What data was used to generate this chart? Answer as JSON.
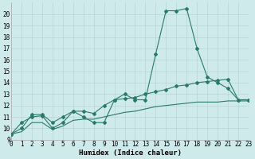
{
  "xlabel": "Humidex (Indice chaleur)",
  "x": [
    0,
    1,
    2,
    3,
    4,
    5,
    6,
    7,
    8,
    9,
    10,
    11,
    12,
    13,
    14,
    15,
    16,
    17,
    18,
    19,
    20,
    21,
    22,
    23
  ],
  "line1": [
    9.5,
    10.5,
    11.0,
    11.1,
    10.0,
    10.5,
    11.5,
    11.0,
    10.5,
    10.5,
    12.5,
    13.0,
    12.5,
    12.5,
    16.5,
    20.3,
    20.3,
    20.5,
    17.0,
    14.5,
    14.0,
    13.5,
    12.5,
    12.5
  ],
  "line2": [
    9.5,
    10.0,
    11.2,
    11.2,
    10.5,
    11.0,
    11.5,
    11.5,
    11.3,
    12.0,
    12.5,
    12.6,
    12.7,
    13.0,
    13.2,
    13.4,
    13.7,
    13.8,
    14.0,
    14.1,
    14.2,
    14.3,
    12.5,
    12.5
  ],
  "line3": [
    9.5,
    9.7,
    10.5,
    10.5,
    9.9,
    10.2,
    10.7,
    10.8,
    10.8,
    11.0,
    11.2,
    11.4,
    11.5,
    11.7,
    11.9,
    12.0,
    12.1,
    12.2,
    12.3,
    12.3,
    12.3,
    12.4,
    12.4,
    12.4
  ],
  "line_color": "#2a7a6a",
  "bg_color": "#ceeaea",
  "grid_minor_color": "#b8d5d2",
  "grid_major_color": "#b8d5d2",
  "xlim": [
    0,
    23
  ],
  "ylim": [
    9,
    21
  ],
  "yticks": [
    9,
    10,
    11,
    12,
    13,
    14,
    15,
    16,
    17,
    18,
    19,
    20
  ],
  "xticks": [
    0,
    1,
    2,
    3,
    4,
    5,
    6,
    7,
    8,
    9,
    10,
    11,
    12,
    13,
    14,
    15,
    16,
    17,
    18,
    19,
    20,
    21,
    22,
    23
  ],
  "markersize": 2.0,
  "linewidth": 0.8,
  "tick_fontsize": 5.5,
  "xlabel_fontsize": 6.5
}
